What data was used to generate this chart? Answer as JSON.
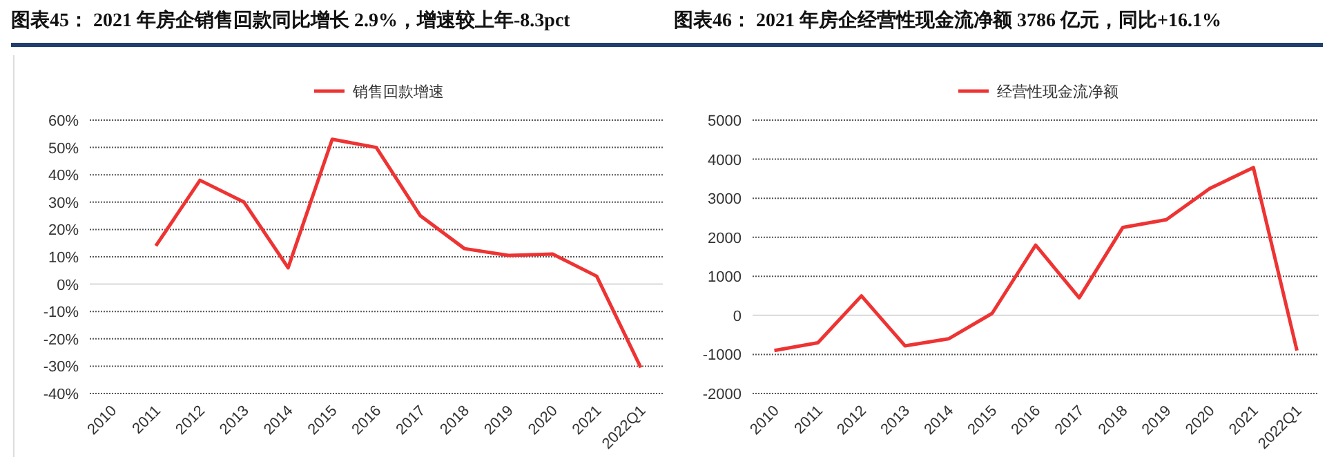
{
  "chart_data": [
    {
      "type": "line",
      "title": "图表45：  2021 年房企销售回款同比增长 2.9%，增速较上年-8.3pct",
      "categories": [
        "2010",
        "2011",
        "2012",
        "2013",
        "2014",
        "2015",
        "2016",
        "2017",
        "2018",
        "2019",
        "2020",
        "2021",
        "2022Q1"
      ],
      "series": [
        {
          "name": "销售回款增速",
          "color": "#ee3333",
          "values": [
            null,
            14,
            38,
            30,
            6,
            53,
            50,
            25,
            13,
            10.5,
            11,
            2.9,
            -30.5
          ]
        }
      ],
      "ylim": [
        -40,
        60
      ],
      "yticks": [
        {
          "value": -40,
          "label": "-40%"
        },
        {
          "value": -30,
          "label": "-30%"
        },
        {
          "value": -20,
          "label": "-20%"
        },
        {
          "value": -10,
          "label": "-10%"
        },
        {
          "value": 0,
          "label": "0%"
        },
        {
          "value": 10,
          "label": "10%"
        },
        {
          "value": 20,
          "label": "20%"
        },
        {
          "value": 30,
          "label": "30%"
        },
        {
          "value": 40,
          "label": "40%"
        },
        {
          "value": 50,
          "label": "50%"
        },
        {
          "value": 60,
          "label": "60%"
        }
      ],
      "grid": "y",
      "legend": "top"
    },
    {
      "type": "line",
      "title": "图表46：  2021 年房企经营性现金流净额 3786 亿元，同比+16.1%",
      "categories": [
        "2010",
        "2011",
        "2012",
        "2013",
        "2014",
        "2015",
        "2016",
        "2017",
        "2018",
        "2019",
        "2020",
        "2021",
        "2022Q1"
      ],
      "series": [
        {
          "name": "经营性现金流净额",
          "color": "#ee3333",
          "values": [
            -900,
            -700,
            500,
            -780,
            -600,
            50,
            1800,
            450,
            2250,
            2450,
            3250,
            3786,
            -900
          ]
        }
      ],
      "ylim": [
        -2000,
        5000
      ],
      "yticks": [
        -2000,
        -1000,
        0,
        1000,
        2000,
        3000,
        4000,
        5000
      ],
      "grid": "y",
      "legend": "top"
    }
  ]
}
